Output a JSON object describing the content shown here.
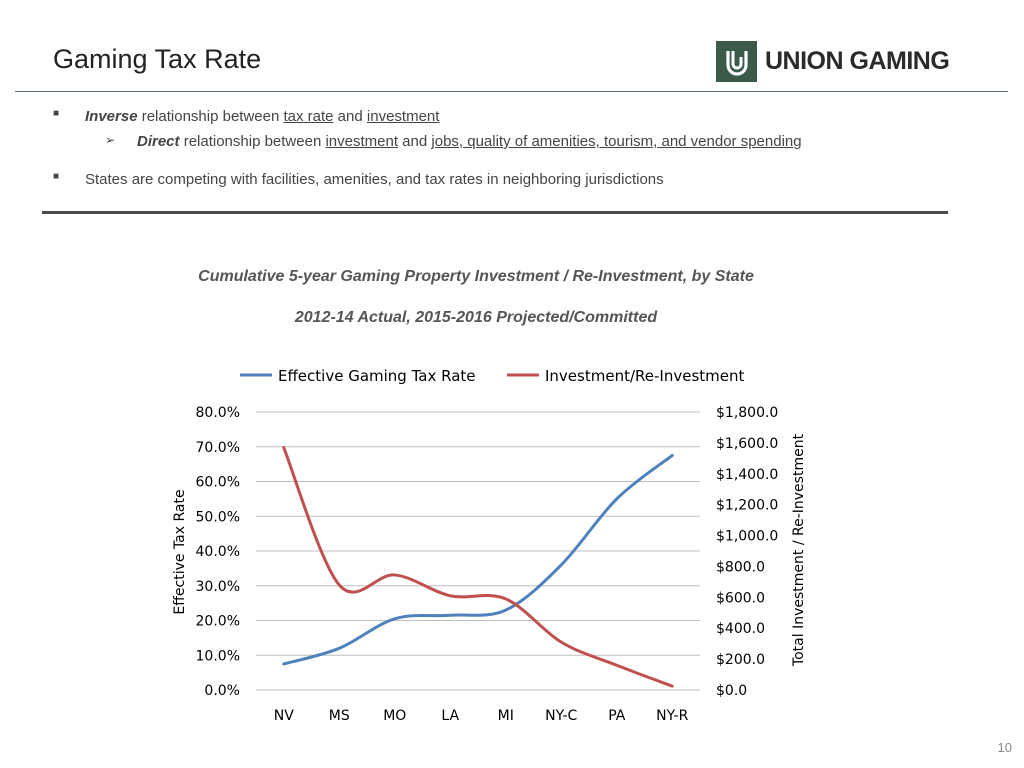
{
  "header": {
    "title": "Gaming Tax Rate",
    "logo_text": "UNION GAMING"
  },
  "bullets": [
    {
      "lead": "Inverse",
      "text1": " relationship between ",
      "link1": "tax rate",
      "text2": " and ",
      "link2": "investment",
      "sub": {
        "lead": "Direct",
        "text1": " relationship between ",
        "link1": "investment",
        "text2": " and ",
        "link2": "jobs, quality of amenities, tourism, and vendor spending"
      }
    },
    {
      "text": "States are competing with facilities, amenities, and tax rates in neighboring jurisdictions"
    }
  ],
  "chart_heading": {
    "line1": "Cumulative 5-year Gaming Property Investment / Re-Investment, by State",
    "line2": "2012-14 Actual, 2015-2016 Projected/Committed"
  },
  "chart_data": {
    "type": "line",
    "categories": [
      "NV",
      "MS",
      "MO",
      "LA",
      "MI",
      "NY-C",
      "PA",
      "NY-R"
    ],
    "series": [
      {
        "name": "Effective Gaming Tax Rate",
        "axis": "left",
        "color": "#4f81bd",
        "values": [
          7.5,
          12.0,
          20.5,
          21.5,
          23.0,
          36.0,
          55.0,
          67.5
        ]
      },
      {
        "name": "Investment/Re-Investment",
        "axis": "right",
        "color": "#c0504d",
        "values": [
          1570,
          680,
          745,
          610,
          590,
          310,
          160,
          25
        ]
      }
    ],
    "y_left": {
      "label": "Effective Tax Rate",
      "min": 0,
      "max": 80,
      "step": 10,
      "ticks": [
        "0.0%",
        "10.0%",
        "20.0%",
        "30.0%",
        "40.0%",
        "50.0%",
        "60.0%",
        "70.0%",
        "80.0%"
      ]
    },
    "y_right": {
      "label": "Total Investment / Re-Investment",
      "min": 0,
      "max": 1800,
      "step": 200,
      "ticks": [
        "$0.0",
        "$200.0",
        "$400.0",
        "$600.0",
        "$800.0",
        "$1,000.0",
        "$1,200.0",
        "$1,400.0",
        "$1,600.0",
        "$1,800.0"
      ]
    },
    "legend_position": "top",
    "grid": true
  },
  "page_number": "10"
}
